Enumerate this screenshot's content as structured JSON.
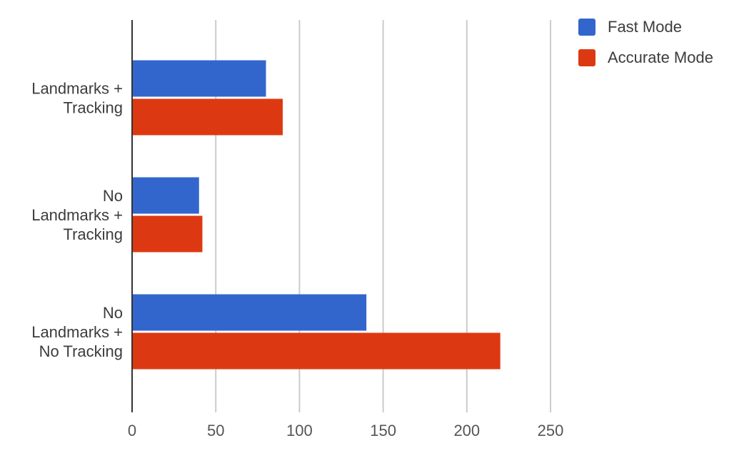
{
  "chart_data": {
    "type": "bar",
    "orientation": "horizontal",
    "categories": [
      [
        "Landmarks +",
        "Tracking"
      ],
      [
        "No",
        "Landmarks +",
        "Tracking"
      ],
      [
        "No",
        "Landmarks +",
        "No Tracking"
      ]
    ],
    "series": [
      {
        "name": "Fast Mode",
        "color": "#3366cc",
        "values": [
          80,
          40,
          140
        ]
      },
      {
        "name": "Accurate Mode",
        "color": "#dc3912",
        "values": [
          90,
          42,
          220
        ]
      }
    ],
    "xlim": [
      0,
      250
    ],
    "xticks": [
      "0",
      "50",
      "100",
      "150",
      "200",
      "250"
    ],
    "grid": "vertical",
    "legend_position": "top-right",
    "title": "",
    "xlabel": "",
    "ylabel": ""
  }
}
